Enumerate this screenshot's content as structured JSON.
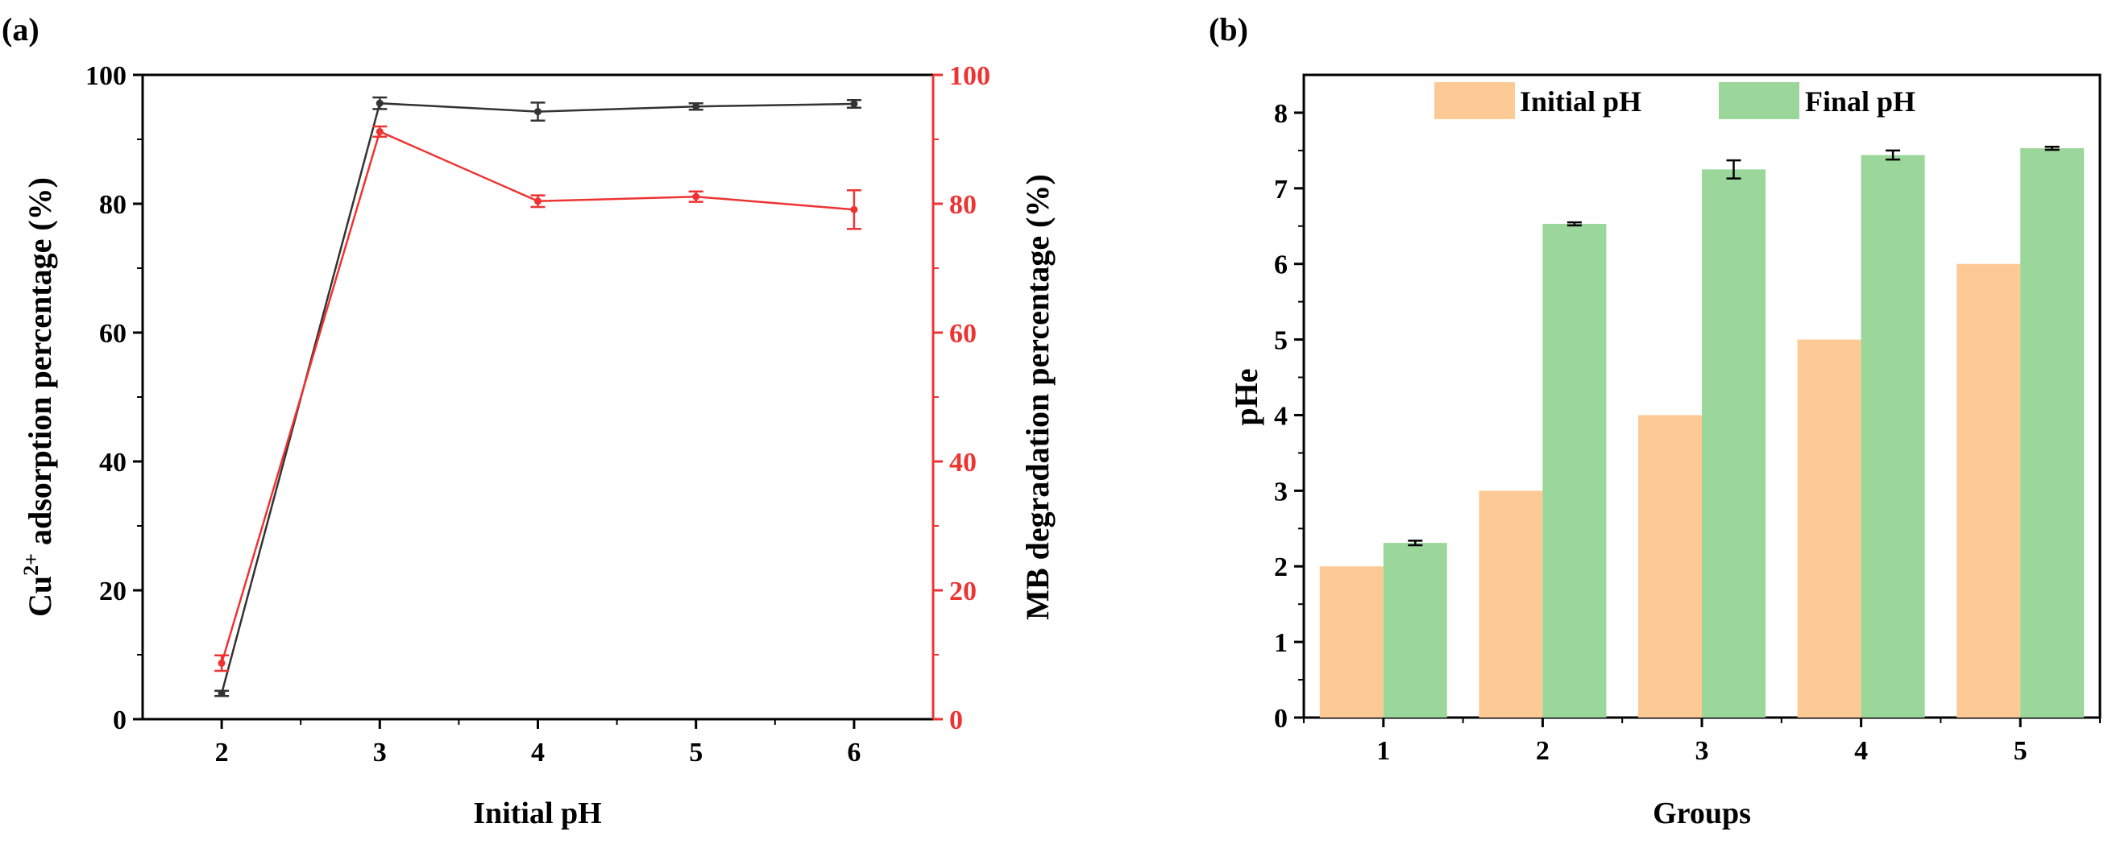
{
  "colors": {
    "black_series": "#333333",
    "red_series": "#ee3333",
    "initial_bar": "#fdca95",
    "final_bar": "#9bd69a",
    "axis": "#000000"
  },
  "chart_data": [
    {
      "panel_label": "(a)",
      "type": "line",
      "x": [
        2,
        3,
        4,
        5,
        6
      ],
      "xticks": [
        "2",
        "3",
        "4",
        "5",
        "6"
      ],
      "xlim": [
        1.5,
        6.5
      ],
      "xlabel": "Initial pH",
      "ylabel_left": {
        "prefix": "Cu",
        "sup": "2+",
        "suffix": " adsorption percentage (%)"
      },
      "ylabel_right": "MB degradation percentage (%)",
      "ylim_left": [
        0,
        100
      ],
      "ylim_right": [
        0,
        100
      ],
      "yticks_left": [
        "0",
        "20",
        "40",
        "60",
        "80",
        "100"
      ],
      "yticks_right": [
        "0",
        "20",
        "40",
        "60",
        "80",
        "100"
      ],
      "series": [
        {
          "name": "Cu2+ adsorption",
          "axis": "left",
          "color": "#333333",
          "values": [
            4.0,
            95.6,
            94.3,
            95.1,
            95.5
          ],
          "errors": [
            0.4,
            0.9,
            1.4,
            0.5,
            0.6
          ]
        },
        {
          "name": "MB degradation",
          "axis": "right",
          "color": "#ee3333",
          "values": [
            8.7,
            91.2,
            80.4,
            81.1,
            79.1
          ],
          "errors": [
            1.2,
            0.8,
            0.9,
            0.8,
            3.0
          ]
        }
      ]
    },
    {
      "panel_label": "(b)",
      "type": "bar",
      "categories": [
        "1",
        "2",
        "3",
        "4",
        "5"
      ],
      "xlabel": "Groups",
      "ylabel": "pHe",
      "ylim": [
        0,
        8.5
      ],
      "yticks": [
        "0",
        "1",
        "2",
        "3",
        "4",
        "5",
        "6",
        "7",
        "8"
      ],
      "legend_position": "top",
      "series": [
        {
          "name": "Initial pH",
          "color": "#fdca95",
          "values": [
            2,
            3,
            4,
            5,
            6
          ],
          "errors": [
            0,
            0,
            0,
            0,
            0
          ]
        },
        {
          "name": "Final pH",
          "color": "#9bd69a",
          "values": [
            2.31,
            6.53,
            7.25,
            7.44,
            7.53
          ],
          "errors": [
            0.03,
            0.02,
            0.12,
            0.06,
            0.02
          ]
        }
      ]
    }
  ]
}
